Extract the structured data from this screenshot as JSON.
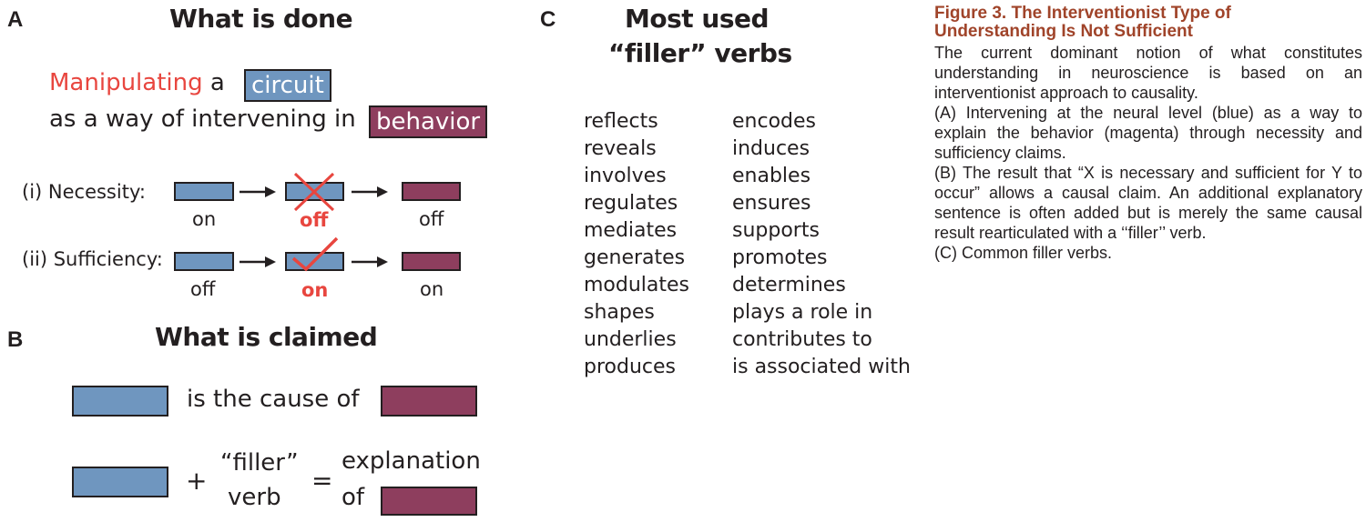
{
  "panel_a": {
    "letter": "A",
    "title": "What is done",
    "line1_verb": "Manipulating",
    "line1_rest": "a",
    "circuit_tag": "circuit",
    "line2_text": "as a way of intervening in",
    "behavior_tag": "behavior",
    "necessity": {
      "label": "(i)  Necessity:",
      "states": [
        "on",
        "off",
        "off"
      ]
    },
    "sufficiency": {
      "label": "(ii)  Sufficiency:",
      "states": [
        "off",
        "on",
        "on"
      ]
    }
  },
  "panel_b": {
    "letter": "B",
    "title": "What is claimed",
    "cause_text": "is the cause of",
    "plus": "+",
    "filler_line1": "“filler”",
    "filler_line2": "verb",
    "equals": "=",
    "explanation_line1": "explanation",
    "explanation_line2": "of"
  },
  "panel_c": {
    "letter": "C",
    "title_line1": "Most used",
    "title_line2": "“filler” verbs",
    "verbs_left": [
      "reflects",
      "reveals",
      "involves",
      "regulates",
      "mediates",
      "generates",
      "modulates",
      "shapes",
      "underlies",
      "produces"
    ],
    "verbs_right": [
      "encodes",
      "induces",
      "enables",
      "ensures",
      "supports",
      "promotes",
      "determines",
      "plays a role in",
      "contributes to",
      "is associated with"
    ]
  },
  "caption": {
    "title_line1": "Figure 3.  The Interventionist Type of",
    "title_line2": "Understanding Is Not Sufficient",
    "intro": "The current dominant notion of what constitutes understanding in neuroscience is based on an interventionist approach to causality.",
    "a": "(A) Intervening at the neural level (blue) as a way to explain the behavior (magenta) through necessity and sufficiency claims.",
    "b": "(B) The result that “X is necessary and sufficient for Y to occur” allows a causal claim. An additional explanatory sentence is often added but is merely the same causal result rearticulated with a ‘‘filler’’ verb.",
    "c": "(C) Common filler verbs."
  },
  "colors": {
    "neural_blue": "#6f96bf",
    "behavior_magenta": "#8e3e5e",
    "highlight_red": "#e8463f",
    "caption_title": "#a0442a"
  }
}
